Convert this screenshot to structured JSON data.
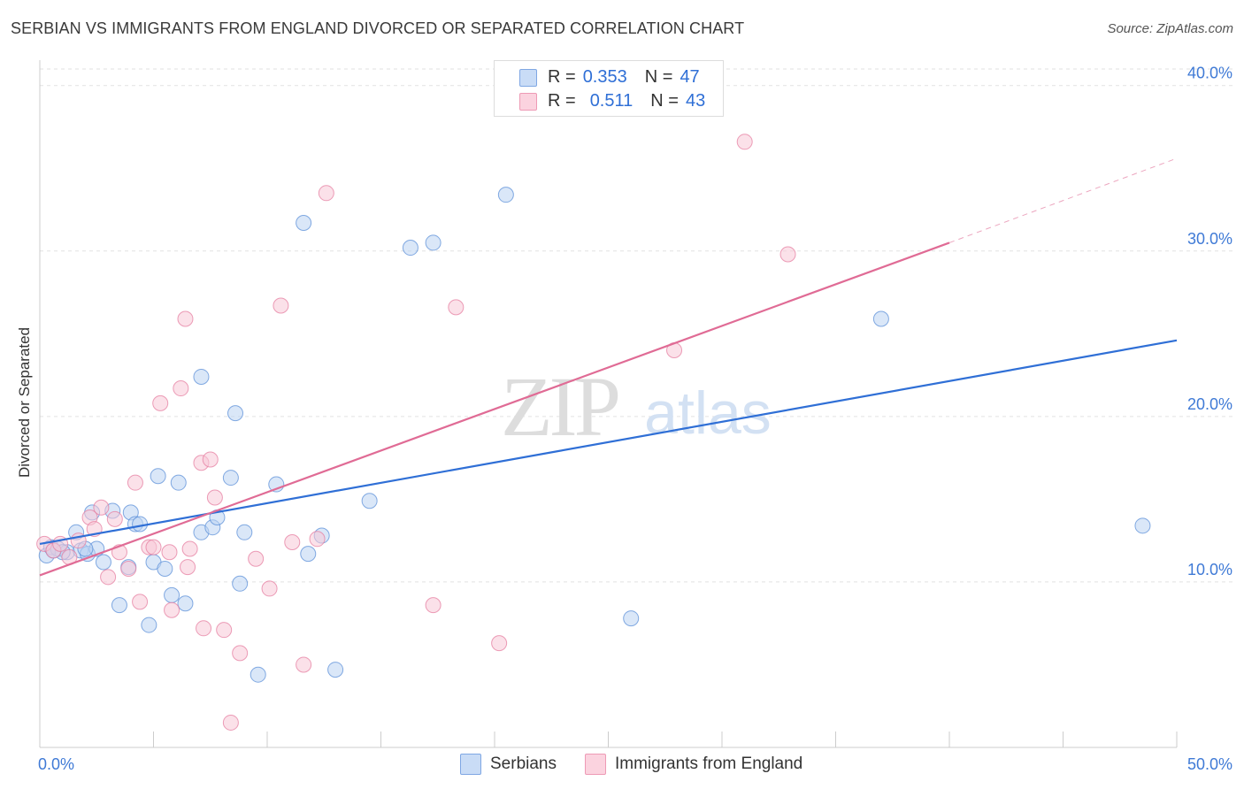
{
  "title": "SERBIAN VS IMMIGRANTS FROM ENGLAND DIVORCED OR SEPARATED CORRELATION CHART",
  "source": "Source: ZipAtlas.com",
  "watermark": {
    "zip": "ZIP",
    "atlas": "atlas"
  },
  "stats": [
    {
      "r_label": "R =",
      "r_value": "0.353",
      "n_label": "N =",
      "n_value": "47",
      "color": "#aac7f0"
    },
    {
      "r_label": "R =",
      "r_value": "0.511",
      "n_label": "N =",
      "n_value": "43",
      "color": "#f5b8cb"
    }
  ],
  "legend": [
    {
      "label": "Serbians",
      "color": "#aac7f0"
    },
    {
      "label": "Immigrants from England",
      "color": "#f5b8cb"
    }
  ],
  "chart_data": {
    "type": "scatter",
    "xlabel": "",
    "ylabel": "Divorced or Separated",
    "xlim": [
      0,
      50
    ],
    "ylim": [
      0,
      41
    ],
    "x_tick_labels": [
      {
        "value": 0,
        "label": "0.0%"
      },
      {
        "value": 50,
        "label": "50.0%"
      }
    ],
    "y_tick_labels": [
      {
        "value": 10,
        "label": "10.0%"
      },
      {
        "value": 20,
        "label": "20.0%"
      },
      {
        "value": 30,
        "label": "30.0%"
      },
      {
        "value": 40,
        "label": "40.0%"
      }
    ],
    "grid": true,
    "legend_position": "bottom-center",
    "series": [
      {
        "name": "Serbians",
        "color": "#5b8fd8",
        "fill": "#bcd3f3",
        "points": [
          [
            0.3,
            11.6
          ],
          [
            0.5,
            12.1
          ],
          [
            0.8,
            12.0
          ],
          [
            1.2,
            11.8
          ],
          [
            1.6,
            13.0
          ],
          [
            1.8,
            11.9
          ],
          [
            2.1,
            11.7
          ],
          [
            2.5,
            12.0
          ],
          [
            2.8,
            11.2
          ],
          [
            2.3,
            14.2
          ],
          [
            3.2,
            14.3
          ],
          [
            4.0,
            14.2
          ],
          [
            4.2,
            13.5
          ],
          [
            4.4,
            13.5
          ],
          [
            3.9,
            10.9
          ],
          [
            5.0,
            11.2
          ],
          [
            5.5,
            10.8
          ],
          [
            3.5,
            8.6
          ],
          [
            4.8,
            7.4
          ],
          [
            5.8,
            9.2
          ],
          [
            6.4,
            8.7
          ],
          [
            5.2,
            16.4
          ],
          [
            6.1,
            16.0
          ],
          [
            7.1,
            13.0
          ],
          [
            7.6,
            13.3
          ],
          [
            7.8,
            13.9
          ],
          [
            8.8,
            9.9
          ],
          [
            9.0,
            13.0
          ],
          [
            9.6,
            4.4
          ],
          [
            8.4,
            16.3
          ],
          [
            10.4,
            15.9
          ],
          [
            11.6,
            31.7
          ],
          [
            11.8,
            11.7
          ],
          [
            12.4,
            12.8
          ],
          [
            13.0,
            4.7
          ],
          [
            14.5,
            14.9
          ],
          [
            16.3,
            30.2
          ],
          [
            17.3,
            30.5
          ],
          [
            20.5,
            33.4
          ],
          [
            26.0,
            7.8
          ],
          [
            37.0,
            25.9
          ],
          [
            48.5,
            13.4
          ],
          [
            8.6,
            20.2
          ],
          [
            7.1,
            22.4
          ],
          [
            1.0,
            11.8
          ],
          [
            0.6,
            11.9
          ],
          [
            2.0,
            12.0
          ]
        ]
      },
      {
        "name": "Immigrants from England",
        "color": "#e67da0",
        "fill": "#f8c8d7",
        "points": [
          [
            0.2,
            12.3
          ],
          [
            0.6,
            11.9
          ],
          [
            0.9,
            12.3
          ],
          [
            1.3,
            11.5
          ],
          [
            1.7,
            12.5
          ],
          [
            2.2,
            13.9
          ],
          [
            2.4,
            13.2
          ],
          [
            2.7,
            14.5
          ],
          [
            3.0,
            10.3
          ],
          [
            3.3,
            13.8
          ],
          [
            3.5,
            11.8
          ],
          [
            3.9,
            10.8
          ],
          [
            4.2,
            16.0
          ],
          [
            4.4,
            8.8
          ],
          [
            4.8,
            12.1
          ],
          [
            5.0,
            12.1
          ],
          [
            5.7,
            11.8
          ],
          [
            5.8,
            8.3
          ],
          [
            6.5,
            10.9
          ],
          [
            6.6,
            12.0
          ],
          [
            7.1,
            17.2
          ],
          [
            7.2,
            7.2
          ],
          [
            7.5,
            17.4
          ],
          [
            7.7,
            15.1
          ],
          [
            8.1,
            7.1
          ],
          [
            8.4,
            1.5
          ],
          [
            8.8,
            5.7
          ],
          [
            9.5,
            11.4
          ],
          [
            10.1,
            9.6
          ],
          [
            11.1,
            12.4
          ],
          [
            11.6,
            5.0
          ],
          [
            12.6,
            33.5
          ],
          [
            10.6,
            26.7
          ],
          [
            12.2,
            12.6
          ],
          [
            17.3,
            8.6
          ],
          [
            18.3,
            26.6
          ],
          [
            20.2,
            6.3
          ],
          [
            27.9,
            24.0
          ],
          [
            31.0,
            36.6
          ],
          [
            32.9,
            29.8
          ],
          [
            5.3,
            20.8
          ],
          [
            6.2,
            21.7
          ],
          [
            6.4,
            25.9
          ]
        ]
      }
    ],
    "trend_lines": [
      {
        "series": "Serbians",
        "color": "#2f6fd6",
        "x0": 0,
        "y0": 12.3,
        "x1": 50,
        "y1": 24.6,
        "dash_to": null
      },
      {
        "series": "Immigrants from England",
        "color": "#e06b95",
        "x0": 0,
        "y0": 10.4,
        "x1": 40,
        "y1": 30.5,
        "dash_to": [
          50,
          35.6
        ]
      }
    ]
  }
}
